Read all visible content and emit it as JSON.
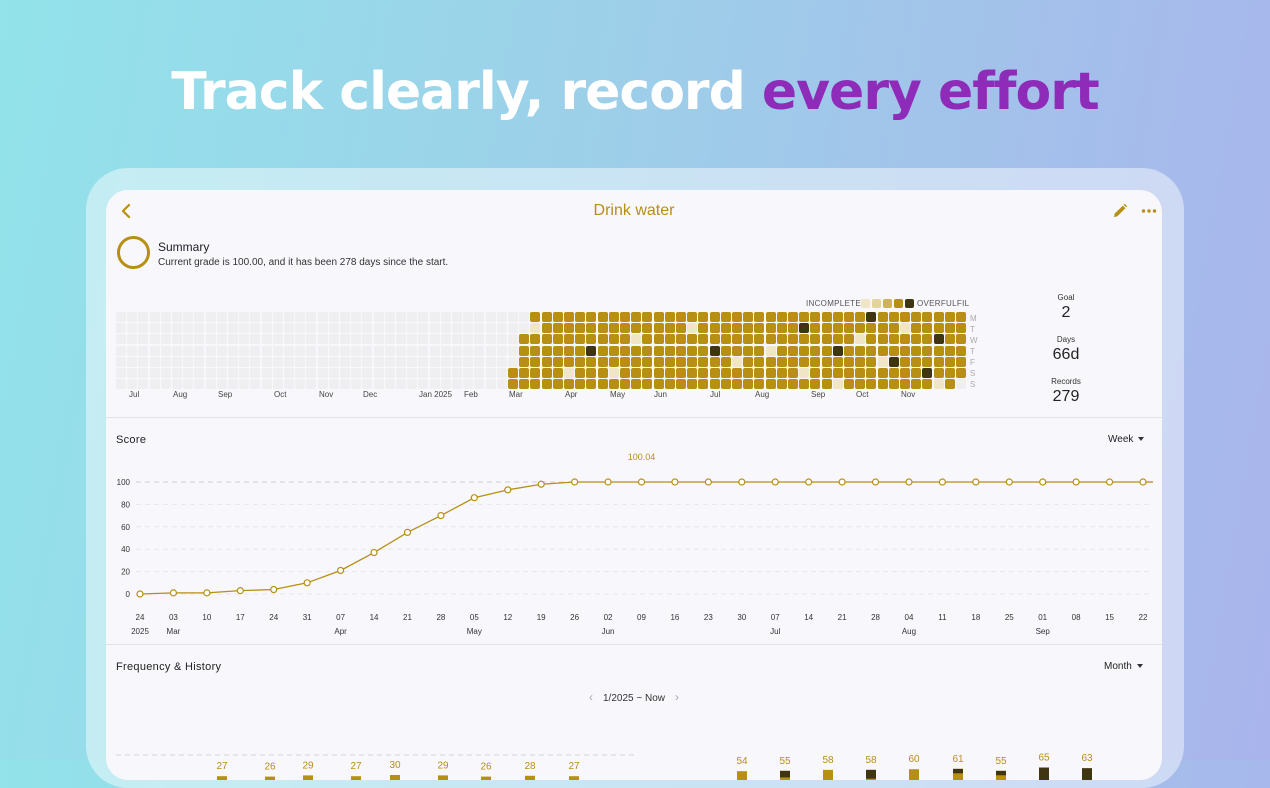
{
  "headline": {
    "part1": "Track clearly, record ",
    "part2": "every effort"
  },
  "colors": {
    "accent": "#b78f13",
    "highlight": "#8e2bb8"
  },
  "header": {
    "title": "Drink water",
    "back_icon": "chevron-left-icon",
    "edit_icon": "pencil-icon",
    "more_icon": "more-horizontal-icon"
  },
  "summary": {
    "heading": "Summary",
    "text": "Current grade is 100.00, and it has been 278 days since the start."
  },
  "heatmap": {
    "legend_low": "INCOMPLETE",
    "legend_high": "OVERFULFIL",
    "day_labels": [
      "M",
      "T",
      "W",
      "T",
      "F",
      "S",
      "S"
    ],
    "month_labels": [
      "Jul",
      "Aug",
      "Sep",
      "Oct",
      "Nov",
      "Dec",
      "Jan 2025",
      "Feb",
      "Mar",
      "Apr",
      "May",
      "Jun",
      "Jul",
      "Aug",
      "Sep",
      "Oct",
      "Nov"
    ]
  },
  "stats": {
    "goal_label": "Goal",
    "goal_value": "2",
    "days_label": "Days",
    "days_value": "66d",
    "records_label": "Records",
    "records_value": "279"
  },
  "score": {
    "title": "Score",
    "period": "Week",
    "peak_label": "100.04"
  },
  "frequency": {
    "title": "Frequency & History",
    "period": "Month",
    "range": "1/2025 ~ Now"
  },
  "chart_data": [
    {
      "type": "line",
      "title": "Score",
      "x": [
        "24",
        "03",
        "10",
        "17",
        "24",
        "31",
        "07",
        "14",
        "21",
        "28",
        "05",
        "12",
        "19",
        "26",
        "02",
        "09",
        "16",
        "23",
        "30",
        "07",
        "14",
        "21",
        "28",
        "04",
        "11",
        "18",
        "25",
        "01",
        "08",
        "15",
        "22"
      ],
      "x_month_labels": [
        {
          "index": 0,
          "label": "2025"
        },
        {
          "index": 1,
          "label": "Mar"
        },
        {
          "index": 6,
          "label": "Apr"
        },
        {
          "index": 10,
          "label": "May"
        },
        {
          "index": 14,
          "label": "Jun"
        },
        {
          "index": 19,
          "label": "Jul"
        },
        {
          "index": 23,
          "label": "Aug"
        },
        {
          "index": 27,
          "label": "Sep"
        }
      ],
      "values": [
        0,
        1,
        1,
        3,
        4,
        10,
        21,
        37,
        55,
        70,
        86,
        93,
        98,
        100,
        100,
        100,
        100,
        100,
        100,
        100,
        100,
        100,
        100,
        100,
        100,
        100,
        100,
        100,
        100,
        100,
        100
      ],
      "yticks": [
        0,
        20,
        40,
        60,
        80,
        100
      ],
      "ylim": [
        0,
        100
      ],
      "annotation": "100.04"
    },
    {
      "type": "bar",
      "title": "Frequency & History",
      "series_left": [
        27,
        26,
        29,
        27,
        30,
        29,
        26,
        28,
        27
      ],
      "series_right": [
        {
          "value": 54,
          "dark": 0
        },
        {
          "value": 55,
          "dark": 3
        },
        {
          "value": 58,
          "dark": 0
        },
        {
          "value": 58,
          "dark": 4
        },
        {
          "value": 60,
          "dark": 0
        },
        {
          "value": 61,
          "dark": 2
        },
        {
          "value": 55,
          "dark": 2
        },
        {
          "value": 65,
          "dark": 7
        },
        {
          "value": 63,
          "dark": 8
        }
      ]
    }
  ]
}
